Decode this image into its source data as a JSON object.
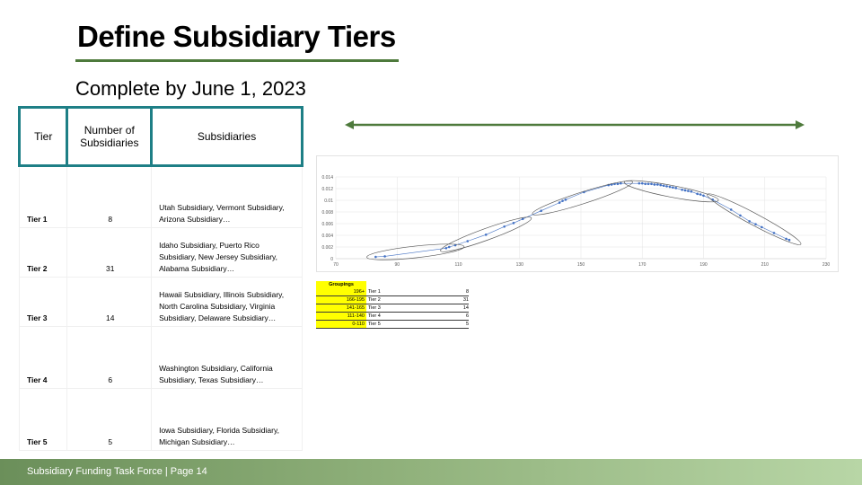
{
  "title": "Define Subsidiary Tiers",
  "subtitle": "Complete by June 1, 2023",
  "table": {
    "headers": [
      "Tier",
      "Number of Subsidiaries",
      "Subsidiaries"
    ],
    "rows": [
      {
        "tier": "Tier 1",
        "count": "8",
        "subsidiaries": "Utah Subsidiary, Vermont Subsidiary, Arizona Subsidiary…"
      },
      {
        "tier": "Tier 2",
        "count": "31",
        "subsidiaries": "Idaho Subsidiary, Puerto Rico Subsidiary, New Jersey Subsidiary, Alabama Subsidiary…"
      },
      {
        "tier": "Tier 3",
        "count": "14",
        "subsidiaries": "Hawaii Subsidiary, Illinois Subsidiary, North Carolina Subsidiary, Virginia Subsidiary, Delaware Subsidiary…"
      },
      {
        "tier": "Tier 4",
        "count": "6",
        "subsidiaries": "Washington Subsidiary, California Subsidiary, Texas Subsidiary…"
      },
      {
        "tier": "Tier 5",
        "count": "5",
        "subsidiaries": "Iowa Subsidiary, Florida Subsidiary, Michigan Subsidiary…"
      }
    ]
  },
  "groupings": {
    "header": "Groupings",
    "rows": [
      {
        "range": "196+",
        "tier": "Tier 1",
        "count": "8"
      },
      {
        "range": "166-195",
        "tier": "Tier 2",
        "count": "31"
      },
      {
        "range": "141-165",
        "tier": "Tier 3",
        "count": "14"
      },
      {
        "range": "111-140",
        "tier": "Tier 4",
        "count": "6"
      },
      {
        "range": "0-110",
        "tier": "Tier 5",
        "count": "5"
      }
    ]
  },
  "footer": "Subsidiary Funding Task Force  |  Page 14",
  "colors": {
    "accent_green": "#4e7a3c",
    "table_border": "#1e7f86",
    "point": "#4472c4",
    "highlight": "#ffff00"
  },
  "chart_data": {
    "type": "scatter",
    "xlim": [
      70,
      230
    ],
    "ylim": [
      0,
      0.014
    ],
    "x_ticks": [
      "70",
      "90",
      "110",
      "130",
      "150",
      "170",
      "190",
      "210",
      "230"
    ],
    "y_ticks": [
      "0",
      "0.002",
      "0.004",
      "0.006",
      "0.008",
      "0.01",
      "0.012",
      "0.014"
    ],
    "grid": true,
    "series": [
      {
        "values": [
          [
            83,
            0.0003
          ],
          [
            86,
            0.0004
          ],
          [
            106,
            0.0018
          ],
          [
            107,
            0.002
          ],
          [
            109,
            0.0023
          ],
          [
            113,
            0.003
          ],
          [
            119,
            0.0041
          ],
          [
            125,
            0.0055
          ],
          [
            128,
            0.0061
          ],
          [
            131,
            0.0068
          ],
          [
            137,
            0.0082
          ],
          [
            143,
            0.0096
          ],
          [
            144,
            0.0099
          ],
          [
            145,
            0.0101
          ],
          [
            151,
            0.0114
          ],
          [
            159,
            0.0126
          ],
          [
            160,
            0.0127
          ],
          [
            161,
            0.0128
          ],
          [
            162,
            0.0128
          ],
          [
            163,
            0.0129
          ],
          [
            169,
            0.0129
          ],
          [
            170,
            0.0129
          ],
          [
            171,
            0.0128
          ],
          [
            172,
            0.0128
          ],
          [
            173,
            0.0128
          ],
          [
            174,
            0.0127
          ],
          [
            175,
            0.0127
          ],
          [
            176,
            0.0126
          ],
          [
            177,
            0.0125
          ],
          [
            178,
            0.0124
          ],
          [
            179,
            0.0123
          ],
          [
            180,
            0.0122
          ],
          [
            181,
            0.0121
          ],
          [
            183,
            0.0118
          ],
          [
            184,
            0.0117
          ],
          [
            185,
            0.0116
          ],
          [
            186,
            0.0115
          ],
          [
            188,
            0.0111
          ],
          [
            189,
            0.011
          ],
          [
            190,
            0.0108
          ],
          [
            193,
            0.0101
          ],
          [
            199,
            0.0084
          ],
          [
            202,
            0.0074
          ],
          [
            205,
            0.0064
          ],
          [
            207,
            0.0059
          ],
          [
            209,
            0.0054
          ],
          [
            213,
            0.0044
          ],
          [
            217,
            0.0034
          ],
          [
            218,
            0.0032
          ]
        ]
      }
    ],
    "clusters": [
      {
        "x": [
          81,
          111
        ],
        "y_at_ends": [
          0.0003,
          0.002
        ]
      },
      {
        "x": [
          105,
          133
        ],
        "y_at_ends": [
          0.0015,
          0.0068
        ]
      },
      {
        "x": [
          135,
          166
        ],
        "y_at_ends": [
          0.0078,
          0.013
        ]
      },
      {
        "x": [
          165,
          194
        ],
        "y_at_ends": [
          0.013,
          0.0101
        ]
      },
      {
        "x": [
          192,
          221
        ],
        "y_at_ends": [
          0.0108,
          0.0027
        ]
      }
    ]
  }
}
